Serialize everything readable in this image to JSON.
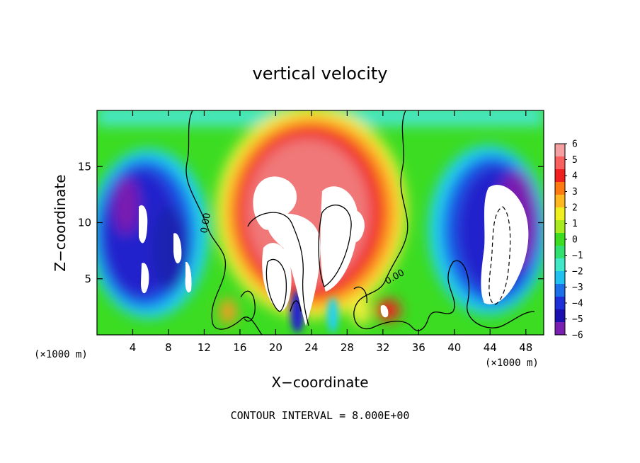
{
  "chart_data": {
    "type": "heatmap",
    "title": "vertical velocity",
    "xlabel": "X−coordinate",
    "ylabel": "Z−coordinate",
    "x_unit_label": "(×1000 m)",
    "x_unit_label_right": "(×1000 m)",
    "xlim": [
      0,
      50
    ],
    "ylim": [
      0,
      20
    ],
    "x_ticks": [
      4,
      8,
      12,
      16,
      20,
      24,
      28,
      32,
      36,
      40,
      44,
      48
    ],
    "x_tick_labels": [
      "4",
      "8",
      "12",
      "16",
      "20",
      "24",
      "28",
      "32",
      "36",
      "40",
      "44",
      "48"
    ],
    "y_ticks": [
      5,
      10,
      15
    ],
    "y_tick_labels": [
      "5",
      "10",
      "15"
    ],
    "colorbar": {
      "min": -6,
      "max": 6,
      "levels": [
        6,
        5,
        4,
        3,
        2,
        1,
        0,
        -1,
        -2,
        -3,
        -4,
        -5,
        -6
      ],
      "labels": [
        "6",
        "5",
        "4",
        "3",
        "2",
        "1",
        "0",
        "−1",
        "−2",
        "−3",
        "−4",
        "−5",
        "−6"
      ]
    },
    "contour_labels": [
      "0.00",
      "0.00"
    ],
    "contour_interval_label": "CONTOUR INTERVAL = 8.000E+00"
  }
}
